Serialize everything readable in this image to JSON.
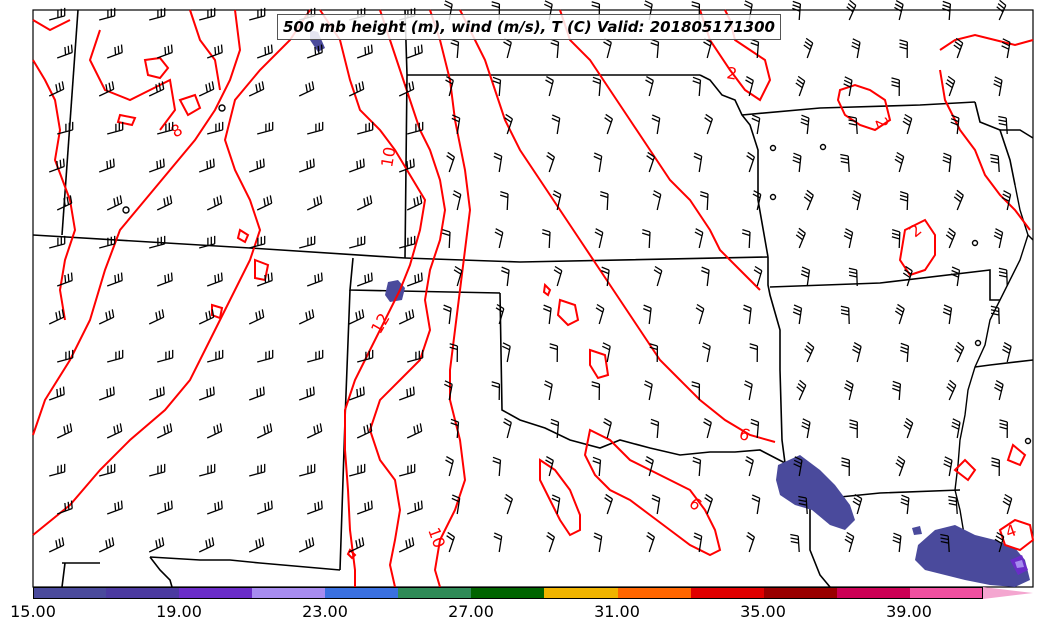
{
  "title": "500 mb height (m), wind (m/s), T (C) Valid: 201805171300",
  "colorbar": {
    "colors": [
      "#4a4a9c",
      "#4b3aa0",
      "#6a2cc8",
      "#a78cf0",
      "#3a70e0",
      "#2e8b57",
      "#006400",
      "#f0b400",
      "#ff6600",
      "#e00000",
      "#990000",
      "#cc0055",
      "#f050a0"
    ],
    "extend_color": "#f4a6d0",
    "tick_labels": [
      "15.00",
      "19.00",
      "23.00",
      "27.00",
      "31.00",
      "35.00",
      "39.00"
    ]
  },
  "contour_labels": [
    "8",
    "10",
    "12",
    "10",
    "2",
    "2",
    "2",
    "6",
    "6",
    "4"
  ],
  "colors": {
    "contour": "#ff0000",
    "border": "#000000",
    "shade": "#4a4a9c"
  }
}
